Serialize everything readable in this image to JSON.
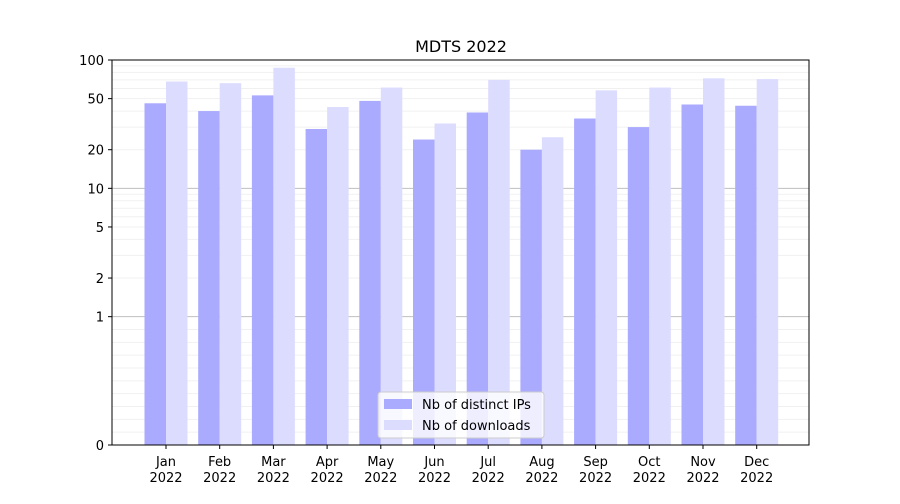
{
  "chart_data": {
    "type": "bar",
    "title": "MDTS 2022",
    "xlabel": "",
    "ylabel": "",
    "yscale": "symlog",
    "ylim": [
      0,
      100
    ],
    "yticks": [
      0,
      1,
      2,
      5,
      10,
      20,
      50,
      100
    ],
    "grid": true,
    "legend_position": "lower center",
    "categories": [
      [
        "Jan",
        "2022"
      ],
      [
        "Feb",
        "2022"
      ],
      [
        "Mar",
        "2022"
      ],
      [
        "Apr",
        "2022"
      ],
      [
        "May",
        "2022"
      ],
      [
        "Jun",
        "2022"
      ],
      [
        "Jul",
        "2022"
      ],
      [
        "Aug",
        "2022"
      ],
      [
        "Sep",
        "2022"
      ],
      [
        "Oct",
        "2022"
      ],
      [
        "Nov",
        "2022"
      ],
      [
        "Dec",
        "2022"
      ]
    ],
    "series": [
      {
        "name": "Nb of distinct IPs",
        "color": "#aaaaff",
        "values": [
          46,
          40,
          53,
          29,
          48,
          24,
          39,
          20,
          35,
          30,
          45,
          44
        ]
      },
      {
        "name": "Nb of downloads",
        "color": "#dcdcff",
        "values": [
          68,
          66,
          87,
          43,
          61,
          32,
          70,
          25,
          58,
          61,
          72,
          71
        ]
      }
    ]
  }
}
